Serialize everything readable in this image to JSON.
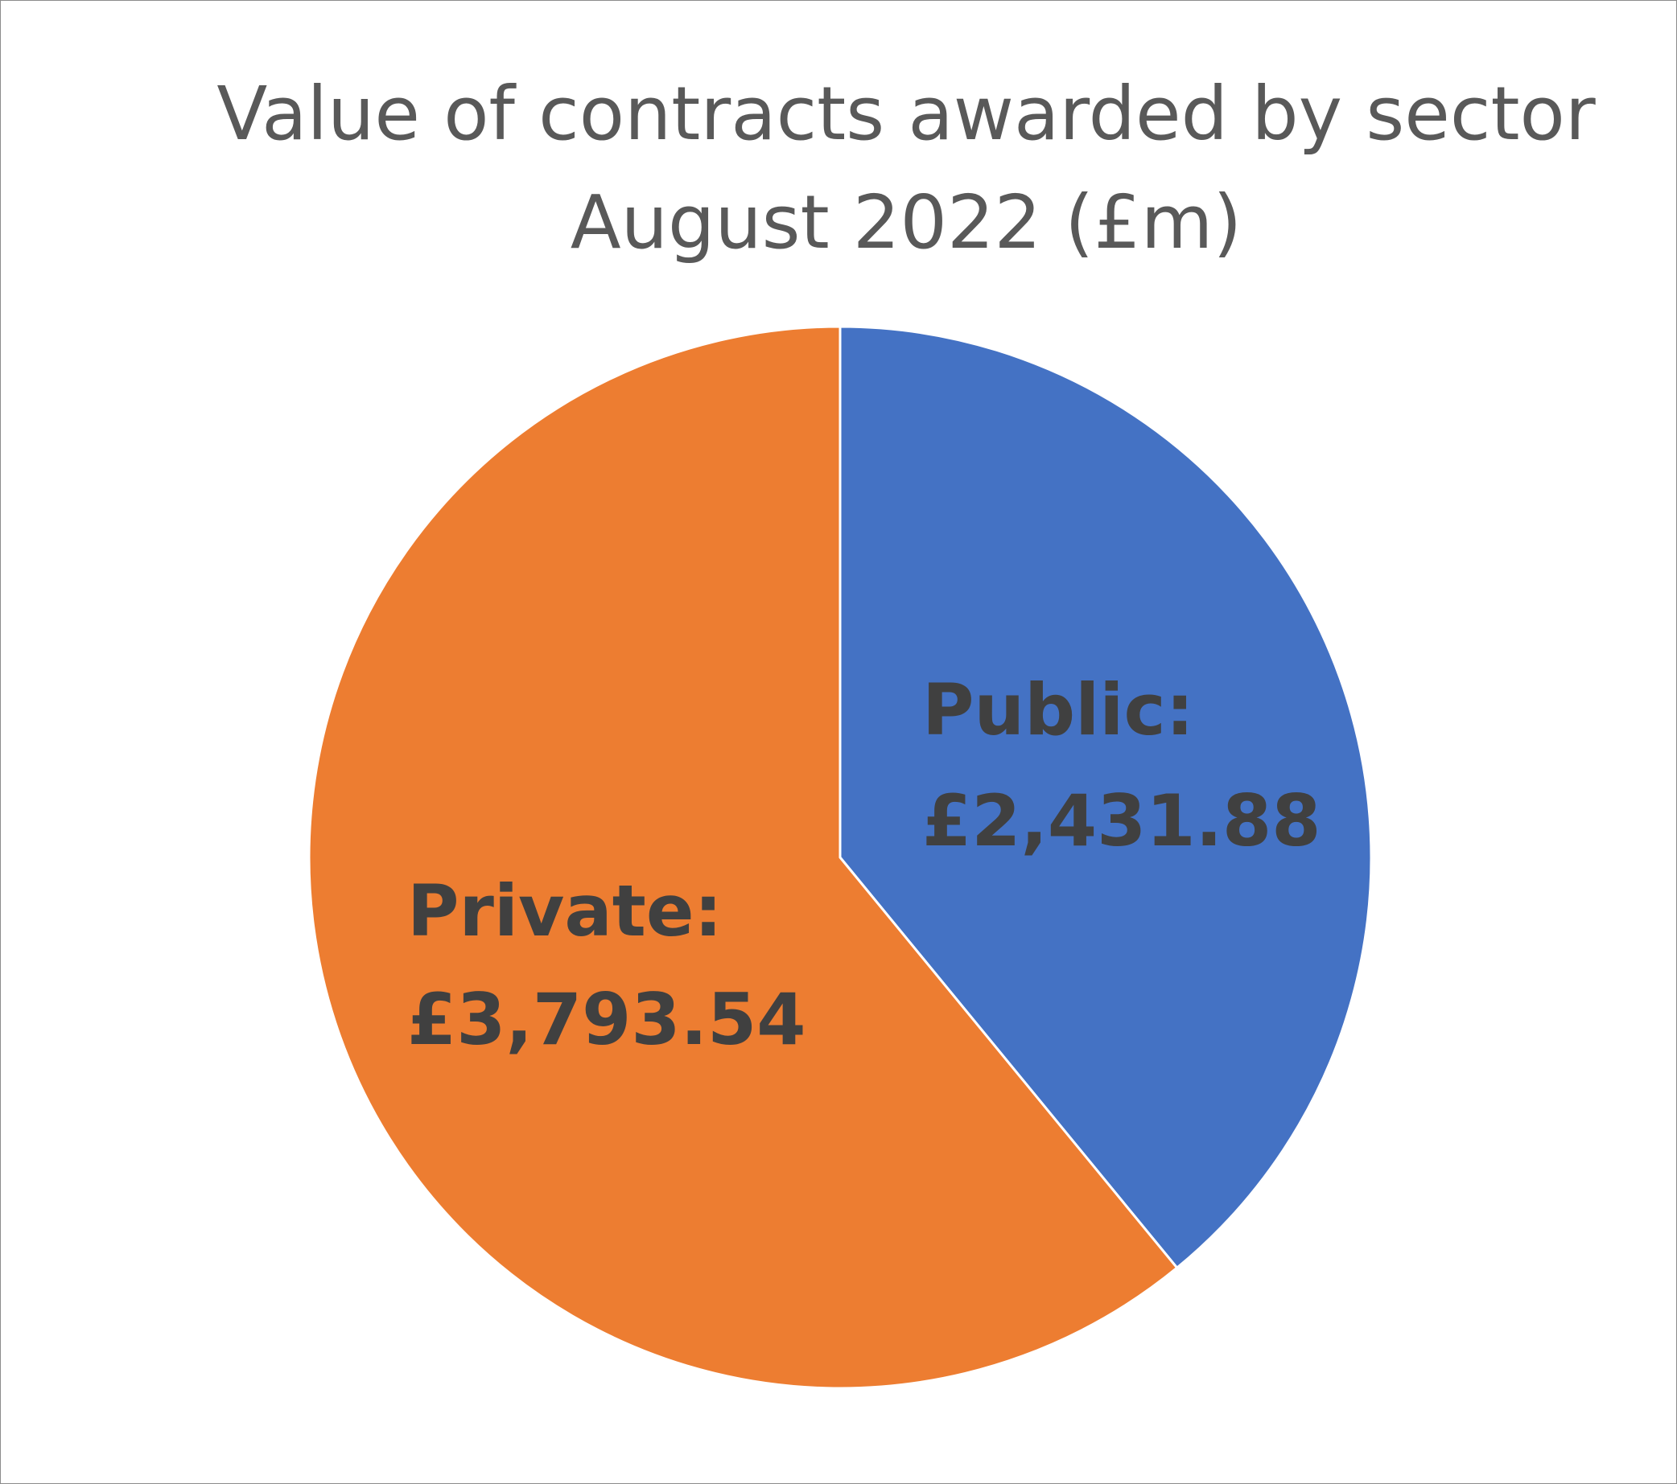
{
  "title_lines": [
    "Value of contracts awarded by sector",
    "August 2022 (£m)"
  ],
  "chart_data": {
    "type": "pie",
    "title": "Value of contracts awarded by sector August 2022 (£m)",
    "start_angle_deg": 0,
    "direction": "clockwise",
    "slices": [
      {
        "name": "Public",
        "value": 2431.88,
        "color": "#4472C4",
        "label_line_1": "Public:",
        "label_line_2": "£2,431.88"
      },
      {
        "name": "Private",
        "value": 3793.54,
        "color": "#ED7D31",
        "label_line_1": "Private:",
        "label_line_2": "£3,793.54"
      }
    ]
  }
}
